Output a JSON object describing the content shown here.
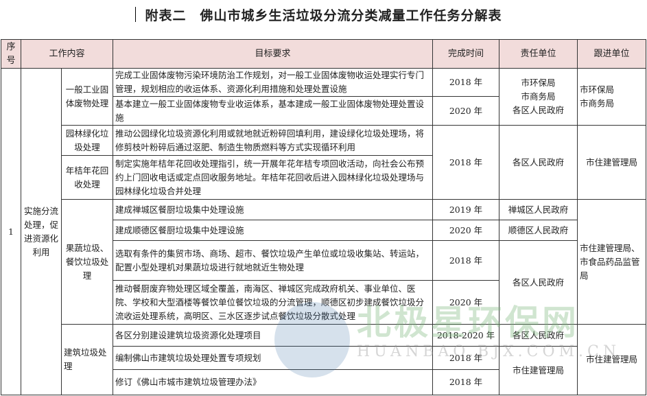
{
  "title": "附表二　佛山市城乡生活垃圾分流分类减量工作任务分解表",
  "headers": {
    "no": "序号",
    "content": "工作内容",
    "target": "目标要求",
    "time": "完成时间",
    "resp": "责任单位",
    "follow": "跟进单位"
  },
  "no": "1",
  "category": "实施分流处理，促进资源化利用",
  "subs": [
    "一般工业固体废物处理",
    "园林绿化垃圾处理",
    "年桔年花回收处理",
    "果蔬垃圾、餐饮垃圾处理",
    "建筑垃圾处理"
  ],
  "rows": [
    {
      "target": "完成工业固体废物污染环境防治工作规划，对一般工业固体废物收运处理实行专门管理，规划相应的收运体系、资源化利用措施和处理处置设施",
      "time": "2018 年"
    },
    {
      "target": "基本建立一般工业固体废物专业收运体系，基本建成一般工业固体废物处理处置设施",
      "time": "2020 年"
    },
    {
      "target": "推动公园绿化垃圾资源化利用或就地就近粉碎回填利用，建设绿化垃圾处理场，将修剪枝叶粉碎后通过沤肥、制造生物质燃料等方式实现循环利用",
      "time": "2018 年"
    },
    {
      "target": "制定实施年桔年花回收处理指引，统一开展年花年桔专项回收活动，向社会公布预约上门回收电话或定点回收服务地址。年桔年花回收后进入园林绿化垃圾处理场与园林绿化垃圾合并处理"
    },
    {
      "target": "建成禅城区餐厨垃圾集中处理设施",
      "time": "2019 年"
    },
    {
      "target": "建成顺德区餐厨垃圾集中处理设施",
      "time": "2020 年"
    },
    {
      "target": "选取有条件的集贸市场、商场、超市、餐饮垃圾产生单位或垃圾收集站、转运站，配置小型处理机对果蔬垃圾进行就地就近生物处理",
      "time": "2018 年"
    },
    {
      "target": "推动餐厨废弃物处理区域全覆盖，南海区、禅城区完成政府机关、事业单位、医院、学校和大型酒楼等餐饮单位餐饮垃圾的分流管理，顺德区初步建成餐饮垃圾分流收运处理系统，高明区、三水区逐步试点餐饮垃圾分散式处理",
      "time": "2020 年"
    },
    {
      "target": "各区分别建设建筑垃圾资源化处理项目",
      "time": "2018-2020 年"
    },
    {
      "target": "编制佛山市建筑垃圾处理处置专项规划",
      "time": "2018 年"
    },
    {
      "target": "修订《佛山市城市建筑垃圾管理办法》",
      "time": "2018 年"
    }
  ],
  "resp": [
    "市环保局\n市商务局\n各区人民政府",
    "各区人民政府",
    "禅城区人民政府",
    "顺德区人民政府",
    "各区人民政府",
    "各区人民政府",
    "市住建管理局"
  ],
  "follow": [
    "市环保局\n市商务局",
    "市住建管理局",
    "市住建管理局、市食品药品监管局",
    "市住建管理局"
  ],
  "watermark": {
    "cn": "北极星环保网",
    "en": "HUANBAO.BJX.COM.CN"
  }
}
